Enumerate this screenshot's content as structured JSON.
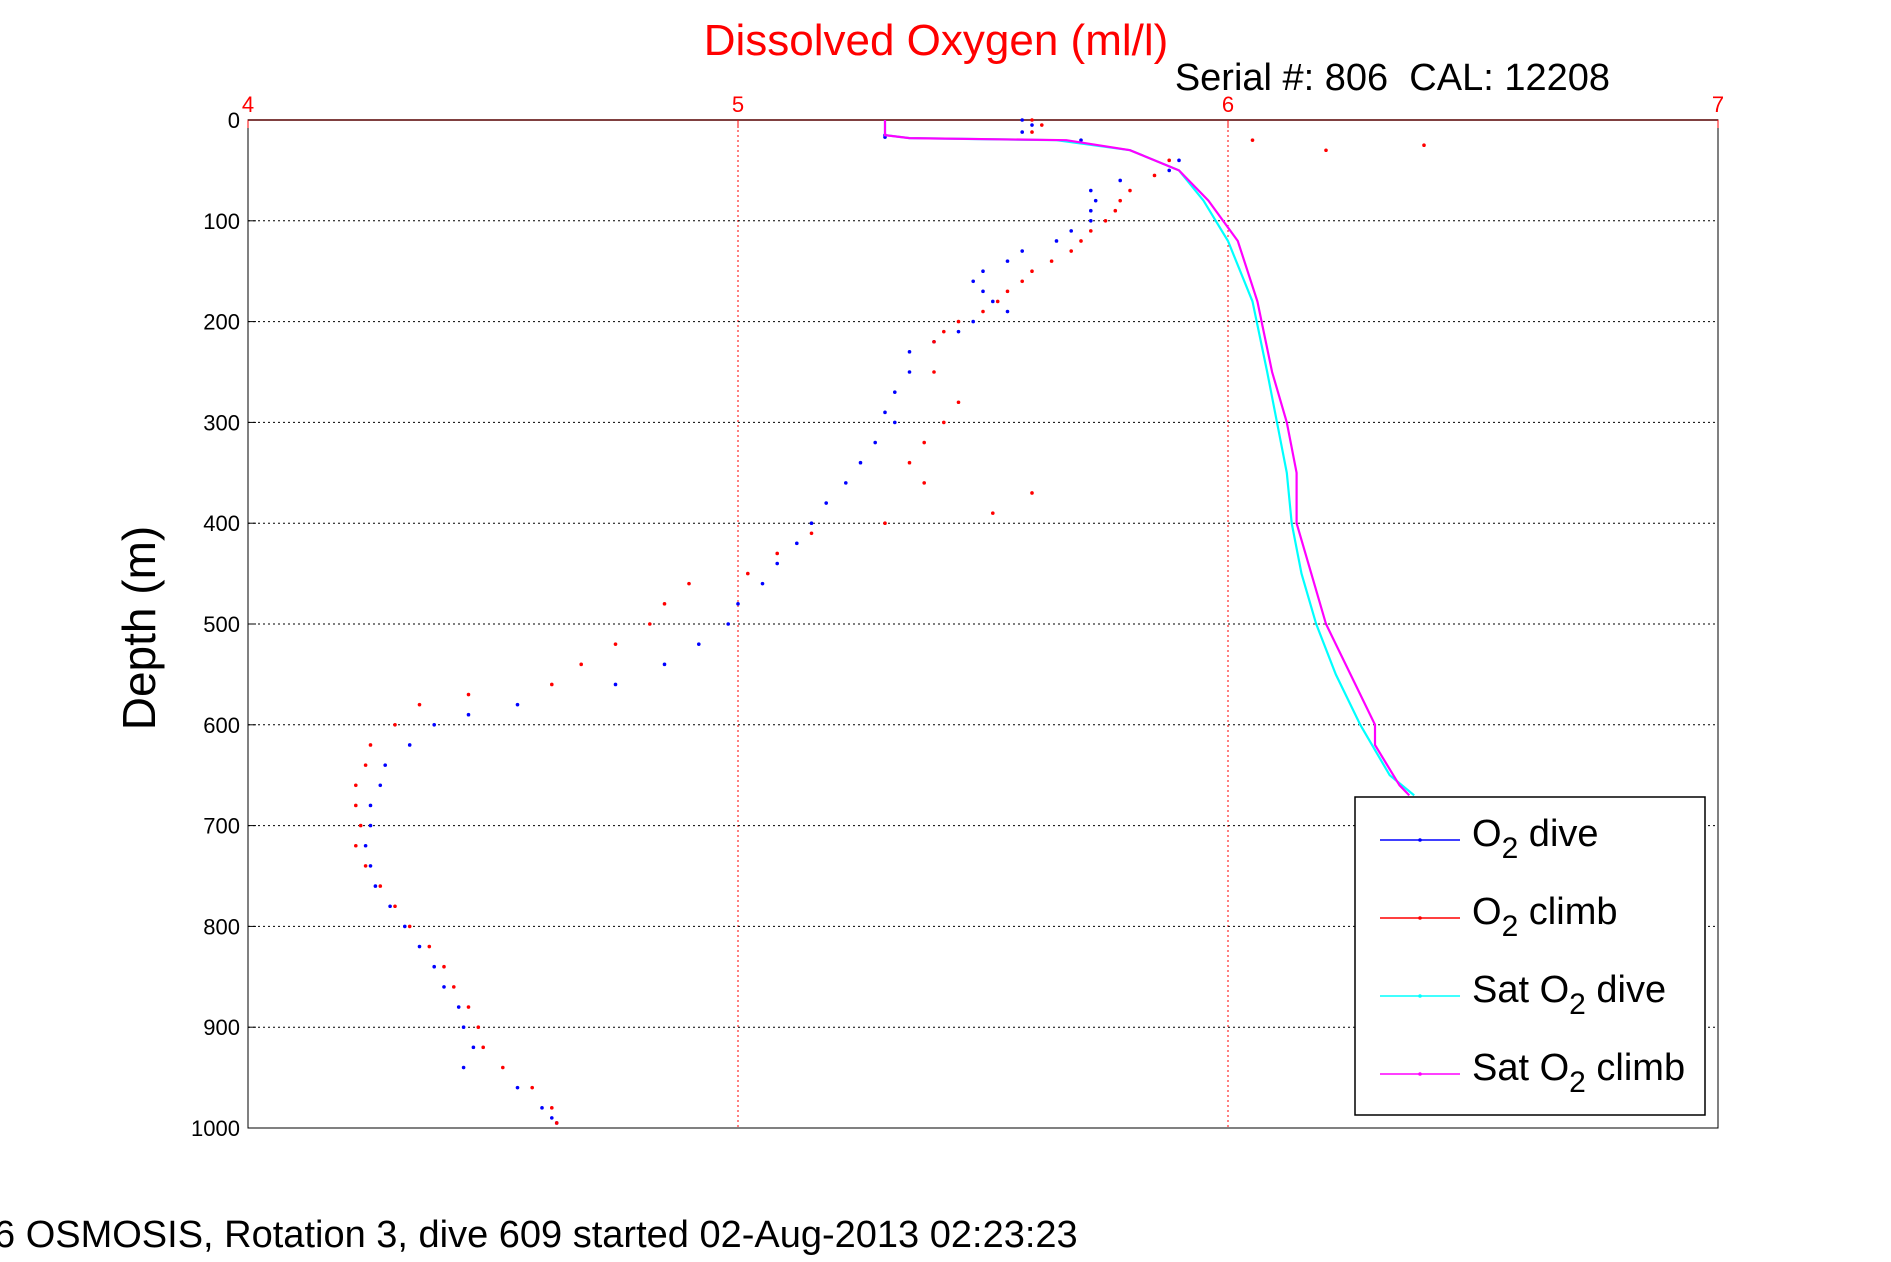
{
  "chart_data": {
    "type": "scatter",
    "title": "Dissolved Oxygen (ml/l)",
    "subtitle": "Serial #: 806  CAL: 12208",
    "ylabel": "Depth (m)",
    "xlabel": "",
    "xlim": [
      4,
      7
    ],
    "ylim": [
      0,
      1000
    ],
    "y_reversed": true,
    "x_axis_position": "top",
    "x_ticks": [
      4,
      5,
      6,
      7
    ],
    "y_ticks": [
      0,
      100,
      200,
      300,
      400,
      500,
      600,
      700,
      800,
      900,
      1000
    ],
    "grid": true,
    "legend_position": "bottom-right",
    "series": [
      {
        "name": "O2 dive",
        "label_base": "O",
        "label_sub": "2",
        "label_rest": " dive",
        "color": "#0000ff",
        "style": "dots",
        "points": [
          [
            5.58,
            0
          ],
          [
            5.6,
            5
          ],
          [
            5.58,
            12
          ],
          [
            5.3,
            15
          ],
          [
            5.3,
            17
          ],
          [
            5.7,
            20
          ],
          [
            5.9,
            40
          ],
          [
            5.88,
            50
          ],
          [
            5.78,
            60
          ],
          [
            5.72,
            70
          ],
          [
            5.73,
            80
          ],
          [
            5.72,
            90
          ],
          [
            5.72,
            100
          ],
          [
            5.68,
            110
          ],
          [
            5.65,
            120
          ],
          [
            5.58,
            130
          ],
          [
            5.55,
            140
          ],
          [
            5.5,
            150
          ],
          [
            5.48,
            160
          ],
          [
            5.5,
            170
          ],
          [
            5.52,
            180
          ],
          [
            5.55,
            190
          ],
          [
            5.48,
            200
          ],
          [
            5.45,
            210
          ],
          [
            5.4,
            220
          ],
          [
            5.35,
            230
          ],
          [
            5.35,
            250
          ],
          [
            5.32,
            270
          ],
          [
            5.3,
            290
          ],
          [
            5.32,
            300
          ],
          [
            5.28,
            320
          ],
          [
            5.25,
            340
          ],
          [
            5.22,
            360
          ],
          [
            5.18,
            380
          ],
          [
            5.15,
            400
          ],
          [
            5.12,
            420
          ],
          [
            5.08,
            440
          ],
          [
            5.05,
            460
          ],
          [
            5.0,
            480
          ],
          [
            4.98,
            500
          ],
          [
            4.92,
            520
          ],
          [
            4.85,
            540
          ],
          [
            4.75,
            560
          ],
          [
            4.55,
            580
          ],
          [
            4.45,
            590
          ],
          [
            4.38,
            600
          ],
          [
            4.33,
            620
          ],
          [
            4.28,
            640
          ],
          [
            4.27,
            660
          ],
          [
            4.25,
            680
          ],
          [
            4.25,
            700
          ],
          [
            4.24,
            720
          ],
          [
            4.25,
            740
          ],
          [
            4.26,
            760
          ],
          [
            4.29,
            780
          ],
          [
            4.32,
            800
          ],
          [
            4.35,
            820
          ],
          [
            4.38,
            840
          ],
          [
            4.4,
            860
          ],
          [
            4.43,
            880
          ],
          [
            4.44,
            900
          ],
          [
            4.46,
            920
          ],
          [
            4.44,
            940
          ],
          [
            4.55,
            960
          ],
          [
            4.6,
            980
          ],
          [
            4.62,
            990
          ],
          [
            4.63,
            995
          ]
        ]
      },
      {
        "name": "O2 climb",
        "label_base": "O",
        "label_sub": "2",
        "label_rest": " climb",
        "color": "#ff0000",
        "style": "dots",
        "points": [
          [
            5.6,
            0
          ],
          [
            5.62,
            5
          ],
          [
            5.6,
            12
          ],
          [
            6.05,
            20
          ],
          [
            6.4,
            25
          ],
          [
            6.2,
            30
          ],
          [
            5.88,
            40
          ],
          [
            5.85,
            55
          ],
          [
            5.8,
            70
          ],
          [
            5.78,
            80
          ],
          [
            5.77,
            90
          ],
          [
            5.75,
            100
          ],
          [
            5.72,
            110
          ],
          [
            5.7,
            120
          ],
          [
            5.68,
            130
          ],
          [
            5.64,
            140
          ],
          [
            5.6,
            150
          ],
          [
            5.58,
            160
          ],
          [
            5.55,
            170
          ],
          [
            5.53,
            180
          ],
          [
            5.5,
            190
          ],
          [
            5.45,
            200
          ],
          [
            5.42,
            210
          ],
          [
            5.4,
            220
          ],
          [
            5.4,
            250
          ],
          [
            5.45,
            280
          ],
          [
            5.42,
            300
          ],
          [
            5.38,
            320
          ],
          [
            5.35,
            340
          ],
          [
            5.38,
            360
          ],
          [
            5.6,
            370
          ],
          [
            5.52,
            390
          ],
          [
            5.3,
            400
          ],
          [
            5.15,
            410
          ],
          [
            5.08,
            430
          ],
          [
            5.02,
            450
          ],
          [
            4.9,
            460
          ],
          [
            4.85,
            480
          ],
          [
            4.82,
            500
          ],
          [
            4.75,
            520
          ],
          [
            4.68,
            540
          ],
          [
            4.62,
            560
          ],
          [
            4.45,
            570
          ],
          [
            4.35,
            580
          ],
          [
            4.3,
            600
          ],
          [
            4.25,
            620
          ],
          [
            4.24,
            640
          ],
          [
            4.22,
            660
          ],
          [
            4.22,
            680
          ],
          [
            4.23,
            700
          ],
          [
            4.22,
            720
          ],
          [
            4.24,
            740
          ],
          [
            4.27,
            760
          ],
          [
            4.3,
            780
          ],
          [
            4.33,
            800
          ],
          [
            4.37,
            820
          ],
          [
            4.4,
            840
          ],
          [
            4.42,
            860
          ],
          [
            4.45,
            880
          ],
          [
            4.47,
            900
          ],
          [
            4.48,
            920
          ],
          [
            4.52,
            940
          ],
          [
            4.58,
            960
          ],
          [
            4.62,
            980
          ],
          [
            4.63,
            995
          ]
        ]
      },
      {
        "name": "Sat O2 dive",
        "label_base": "Sat O",
        "label_sub": "2",
        "label_rest": " dive",
        "color": "#00ffff",
        "style": "line",
        "points": [
          [
            5.3,
            0
          ],
          [
            5.3,
            15
          ],
          [
            5.35,
            18
          ],
          [
            5.65,
            20
          ],
          [
            5.8,
            30
          ],
          [
            5.9,
            50
          ],
          [
            5.95,
            80
          ],
          [
            6.0,
            120
          ],
          [
            6.05,
            180
          ],
          [
            6.08,
            250
          ],
          [
            6.1,
            300
          ],
          [
            6.12,
            350
          ],
          [
            6.13,
            400
          ],
          [
            6.15,
            450
          ],
          [
            6.18,
            500
          ],
          [
            6.22,
            550
          ],
          [
            6.27,
            600
          ],
          [
            6.33,
            650
          ],
          [
            6.38,
            670
          ]
        ]
      },
      {
        "name": "Sat O2 climb",
        "label_base": "Sat O",
        "label_sub": "2",
        "label_rest": " climb",
        "color": "#ff00ff",
        "style": "line",
        "points": [
          [
            5.3,
            0
          ],
          [
            5.3,
            15
          ],
          [
            5.35,
            18
          ],
          [
            5.67,
            20
          ],
          [
            5.8,
            30
          ],
          [
            5.9,
            50
          ],
          [
            5.96,
            80
          ],
          [
            6.02,
            120
          ],
          [
            6.06,
            180
          ],
          [
            6.09,
            250
          ],
          [
            6.12,
            300
          ],
          [
            6.14,
            350
          ],
          [
            6.14,
            400
          ],
          [
            6.17,
            450
          ],
          [
            6.2,
            500
          ],
          [
            6.25,
            550
          ],
          [
            6.3,
            600
          ],
          [
            6.3,
            620
          ],
          [
            6.35,
            660
          ],
          [
            6.37,
            670
          ]
        ]
      }
    ]
  },
  "footer": "6 OSMOSIS, Rotation 3, dive 609 started 02-Aug-2013 02:23:23"
}
